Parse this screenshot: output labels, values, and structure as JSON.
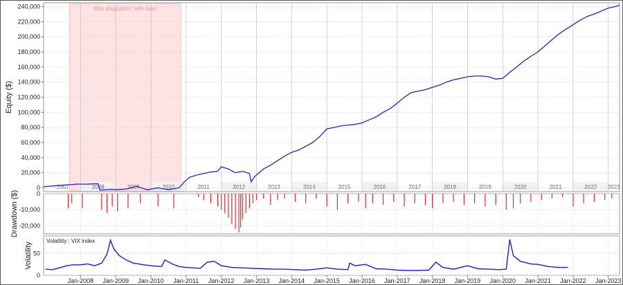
{
  "chart_data": [
    {
      "type": "line",
      "panel": "equity",
      "ylabel": "Equity ($)",
      "ylim": [
        -5000,
        245000
      ],
      "yticks": [
        0,
        20000,
        40000,
        60000,
        80000,
        100000,
        120000,
        140000,
        160000,
        180000,
        200000,
        220000,
        240000
      ],
      "ytick_labels": [
        "0",
        "20,000",
        "40,000",
        "60,000",
        "80,000",
        "100,000",
        "120,000",
        "140,000",
        "160,000",
        "180,000",
        "200,000",
        "220,000",
        "240,000"
      ],
      "year_bands": [
        "2007",
        "2008",
        "2009",
        "2010",
        "2011",
        "2012",
        "2013",
        "2014",
        "2015",
        "2016",
        "2017",
        "2018",
        "2019",
        "2020",
        "2021",
        "2022",
        "2023"
      ],
      "annotation": {
        "text": "Max stagnation: 989 days",
        "x_start": 2007.68,
        "x_end": 2010.85
      },
      "color": "#2323d6",
      "grid": true,
      "series": [
        {
          "x": [
            2006.95,
            2007.5,
            2007.9,
            2008.2,
            2008.5,
            2008.55,
            2008.9,
            2009.0,
            2009.3,
            2009.6,
            2009.9,
            2010.2,
            2010.5,
            2010.8,
            2010.95,
            2011.1,
            2011.3,
            2011.5,
            2011.7,
            2011.9,
            2012.0,
            2012.2,
            2012.4,
            2012.6,
            2012.8,
            2012.85,
            2012.95,
            2013.2,
            2013.4,
            2013.6,
            2013.8,
            2014.0,
            2014.2,
            2014.4,
            2014.6,
            2014.8,
            2015.0,
            2015.2,
            2015.4,
            2015.6,
            2015.8,
            2016.0,
            2016.2,
            2016.4,
            2016.6,
            2016.8,
            2017.0,
            2017.2,
            2017.4,
            2017.6,
            2017.8,
            2018.0,
            2018.2,
            2018.4,
            2018.6,
            2018.8,
            2019.0,
            2019.2,
            2019.4,
            2019.6,
            2019.8,
            2020.0,
            2020.2,
            2020.4,
            2020.6,
            2020.8,
            2021.0,
            2021.2,
            2021.4,
            2021.6,
            2021.8,
            2022.0,
            2022.2,
            2022.4,
            2022.6,
            2022.8,
            2023.0,
            2023.2,
            2023.32
          ],
          "y": [
            1500,
            3500,
            5000,
            5000,
            5500,
            -3000,
            -2000,
            -2500,
            -1500,
            2000,
            -2500,
            0,
            -2500,
            0,
            8000,
            14000,
            17000,
            19000,
            21000,
            22000,
            28000,
            25000,
            20000,
            22000,
            19000,
            8000,
            15000,
            25000,
            30000,
            36000,
            42000,
            47000,
            50000,
            55000,
            60000,
            68000,
            78000,
            80000,
            82000,
            83000,
            84000,
            86000,
            90000,
            94000,
            100000,
            105000,
            112000,
            120000,
            126000,
            128000,
            130000,
            133000,
            136000,
            140000,
            143000,
            145000,
            147000,
            148000,
            148000,
            147000,
            144000,
            145000,
            153000,
            160000,
            168000,
            174000,
            180000,
            188000,
            196000,
            204000,
            210000,
            216000,
            222000,
            227000,
            230000,
            234000,
            238000,
            240000,
            242000
          ]
        }
      ]
    },
    {
      "type": "bar",
      "panel": "drawdown",
      "ylabel": "Drawdown ($)",
      "ylim": [
        -25000,
        0
      ],
      "yticks": [
        0,
        -10000,
        -20000
      ],
      "ytick_labels": [
        "0",
        "-10,000",
        "-20,000"
      ],
      "color": "#e42a2a",
      "x": [
        2007.65,
        2007.75,
        2008.05,
        2008.6,
        2008.75,
        2008.9,
        2009.05,
        2009.35,
        2009.7,
        2010.2,
        2010.65,
        2011.35,
        2011.5,
        2011.7,
        2011.9,
        2012.0,
        2012.1,
        2012.2,
        2012.3,
        2012.4,
        2012.5,
        2012.55,
        2012.6,
        2012.7,
        2012.8,
        2012.9,
        2013.0,
        2013.2,
        2013.4,
        2013.6,
        2013.8,
        2014.1,
        2014.4,
        2014.7,
        2015.0,
        2015.3,
        2015.6,
        2015.9,
        2016.1,
        2016.3,
        2016.6,
        2016.9,
        2017.2,
        2017.5,
        2017.8,
        2018.0,
        2018.3,
        2018.6,
        2018.9,
        2019.2,
        2019.5,
        2019.8,
        2020.1,
        2020.3,
        2020.5,
        2020.8,
        2021.1,
        2021.4,
        2021.7,
        2022.0,
        2022.3,
        2022.6,
        2022.9,
        2023.1
      ],
      "values": [
        -9000,
        -6000,
        -9000,
        -10000,
        -12000,
        -8000,
        -11000,
        -9000,
        -6000,
        -8000,
        -9000,
        -2000,
        -4000,
        -6000,
        -8000,
        -10000,
        -12000,
        -15000,
        -19000,
        -22000,
        -24000,
        -21000,
        -16000,
        -12000,
        -9000,
        -6000,
        -4000,
        -3000,
        -7000,
        -4000,
        -3000,
        -5000,
        -6000,
        -3000,
        -8000,
        -10000,
        -6000,
        -5000,
        -9000,
        -6000,
        -7000,
        -5000,
        -8000,
        -6000,
        -7000,
        -9000,
        -6000,
        -5000,
        -7000,
        -6000,
        -8000,
        -7000,
        -10000,
        -9000,
        -6000,
        -5000,
        -4000,
        -3000,
        -2000,
        -8000,
        -6000,
        -5000,
        -4000,
        -3000
      ]
    },
    {
      "type": "line",
      "panel": "volatility",
      "ylabel": "Volatility",
      "legend": "Volatility : VIX index",
      "ylim": [
        0,
        90
      ],
      "yticks": [
        0,
        50
      ],
      "ytick_labels": [
        "0",
        "50"
      ],
      "color": "#1a1ae0",
      "xticks": [
        "Jan-2008",
        "Jan-2009",
        "Jan-2010",
        "Jan-2011",
        "Jan-2012",
        "Jan-2013",
        "Jan-2014",
        "Jan-2015",
        "Jan-2016",
        "Jan-2017",
        "Jan-2018",
        "Jan-2019",
        "Jan-2020",
        "Jan-2021",
        "Jan-2022",
        "Jan-2023"
      ],
      "series": [
        {
          "x": [
            2007.0,
            2007.2,
            2007.4,
            2007.6,
            2007.8,
            2008.0,
            2008.2,
            2008.4,
            2008.6,
            2008.75,
            2008.85,
            2008.95,
            2009.1,
            2009.3,
            2009.5,
            2009.8,
            2010.0,
            2010.3,
            2010.4,
            2010.6,
            2010.8,
            2011.0,
            2011.4,
            2011.6,
            2011.8,
            2012.0,
            2012.3,
            2012.6,
            2012.9,
            2013.2,
            2013.5,
            2013.8,
            2014.1,
            2014.4,
            2014.7,
            2015.0,
            2015.3,
            2015.6,
            2015.65,
            2015.8,
            2016.1,
            2016.4,
            2016.7,
            2017.0,
            2017.3,
            2017.6,
            2017.9,
            2018.1,
            2018.3,
            2018.6,
            2018.9,
            2019.0,
            2019.3,
            2019.6,
            2019.9,
            2020.1,
            2020.2,
            2020.3,
            2020.5,
            2020.8,
            2021.0,
            2021.3,
            2021.6,
            2021.85
          ],
          "y": [
            14,
            13,
            17,
            22,
            24,
            24,
            26,
            22,
            28,
            48,
            80,
            60,
            45,
            35,
            28,
            24,
            22,
            20,
            35,
            26,
            20,
            18,
            16,
            30,
            32,
            22,
            18,
            17,
            16,
            15,
            14,
            14,
            13,
            12,
            14,
            17,
            14,
            13,
            28,
            22,
            25,
            15,
            14,
            12,
            11,
            11,
            12,
            30,
            18,
            14,
            20,
            22,
            15,
            14,
            13,
            14,
            82,
            45,
            32,
            26,
            25,
            20,
            18,
            18
          ]
        }
      ]
    }
  ]
}
